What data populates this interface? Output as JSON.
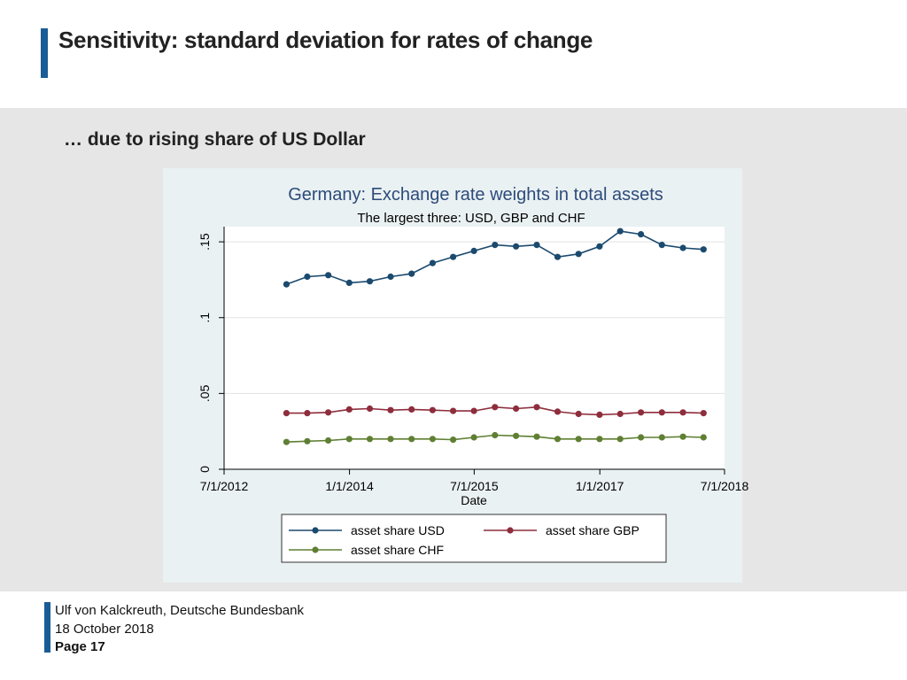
{
  "slide": {
    "title": "Sensitivity: standard deviation for rates of change",
    "subtitle": "… due to rising share of US Dollar"
  },
  "footer": {
    "author": "Ulf von Kalckreuth, Deutsche Bundesbank",
    "date": "18 October 2018",
    "page": "Page 17"
  },
  "colors": {
    "brand_blue": "#1a5c96",
    "usd": "#1b4a6e",
    "gbp": "#8e2d3c",
    "chf": "#5f7f33",
    "title_text": "#2d4b7a"
  },
  "chart_data": {
    "type": "line",
    "title": "Germany: Exchange rate weights in total assets",
    "subtitle": "The largest three: USD, GBP and CHF",
    "xlabel": "Date",
    "ylabel": "",
    "xlim": [
      "2012-07-01",
      "2018-07-01"
    ],
    "ylim": [
      0,
      0.16
    ],
    "yticks": [
      0,
      0.05,
      0.1,
      0.15
    ],
    "ytick_labels": [
      "0",
      ".05",
      ".1",
      ".15"
    ],
    "xticks": [
      "2012-07-01",
      "2014-01-01",
      "2015-07-01",
      "2017-01-01",
      "2018-07-01"
    ],
    "xtick_labels": [
      "7/1/2012",
      "1/1/2014",
      "7/1/2015",
      "1/1/2017",
      "7/1/2018"
    ],
    "grid": true,
    "legend_position": "bottom",
    "x": [
      "2013-03-31",
      "2013-06-30",
      "2013-09-30",
      "2013-12-31",
      "2014-03-31",
      "2014-06-30",
      "2014-09-30",
      "2014-12-31",
      "2015-03-31",
      "2015-06-30",
      "2015-09-30",
      "2015-12-31",
      "2016-03-31",
      "2016-06-30",
      "2016-09-30",
      "2016-12-31",
      "2017-03-31",
      "2017-06-30",
      "2017-09-30",
      "2017-12-31",
      "2018-03-31"
    ],
    "series": [
      {
        "name": "asset share USD",
        "color": "#1b4a6e",
        "values": [
          0.122,
          0.127,
          0.128,
          0.123,
          0.124,
          0.127,
          0.129,
          0.136,
          0.14,
          0.144,
          0.148,
          0.147,
          0.148,
          0.14,
          0.142,
          0.147,
          0.157,
          0.155,
          0.148,
          0.146,
          0.145
        ]
      },
      {
        "name": "asset share GBP",
        "color": "#8e2d3c",
        "values": [
          0.037,
          0.037,
          0.0375,
          0.0395,
          0.04,
          0.039,
          0.0395,
          0.039,
          0.0385,
          0.0385,
          0.041,
          0.04,
          0.041,
          0.038,
          0.0365,
          0.036,
          0.0365,
          0.0375,
          0.0375,
          0.0375,
          0.037
        ]
      },
      {
        "name": "asset share CHF",
        "color": "#5f7f33",
        "values": [
          0.018,
          0.0185,
          0.019,
          0.02,
          0.02,
          0.02,
          0.02,
          0.02,
          0.0195,
          0.021,
          0.0225,
          0.022,
          0.0215,
          0.02,
          0.02,
          0.02,
          0.02,
          0.021,
          0.021,
          0.0215,
          0.021
        ]
      }
    ]
  }
}
